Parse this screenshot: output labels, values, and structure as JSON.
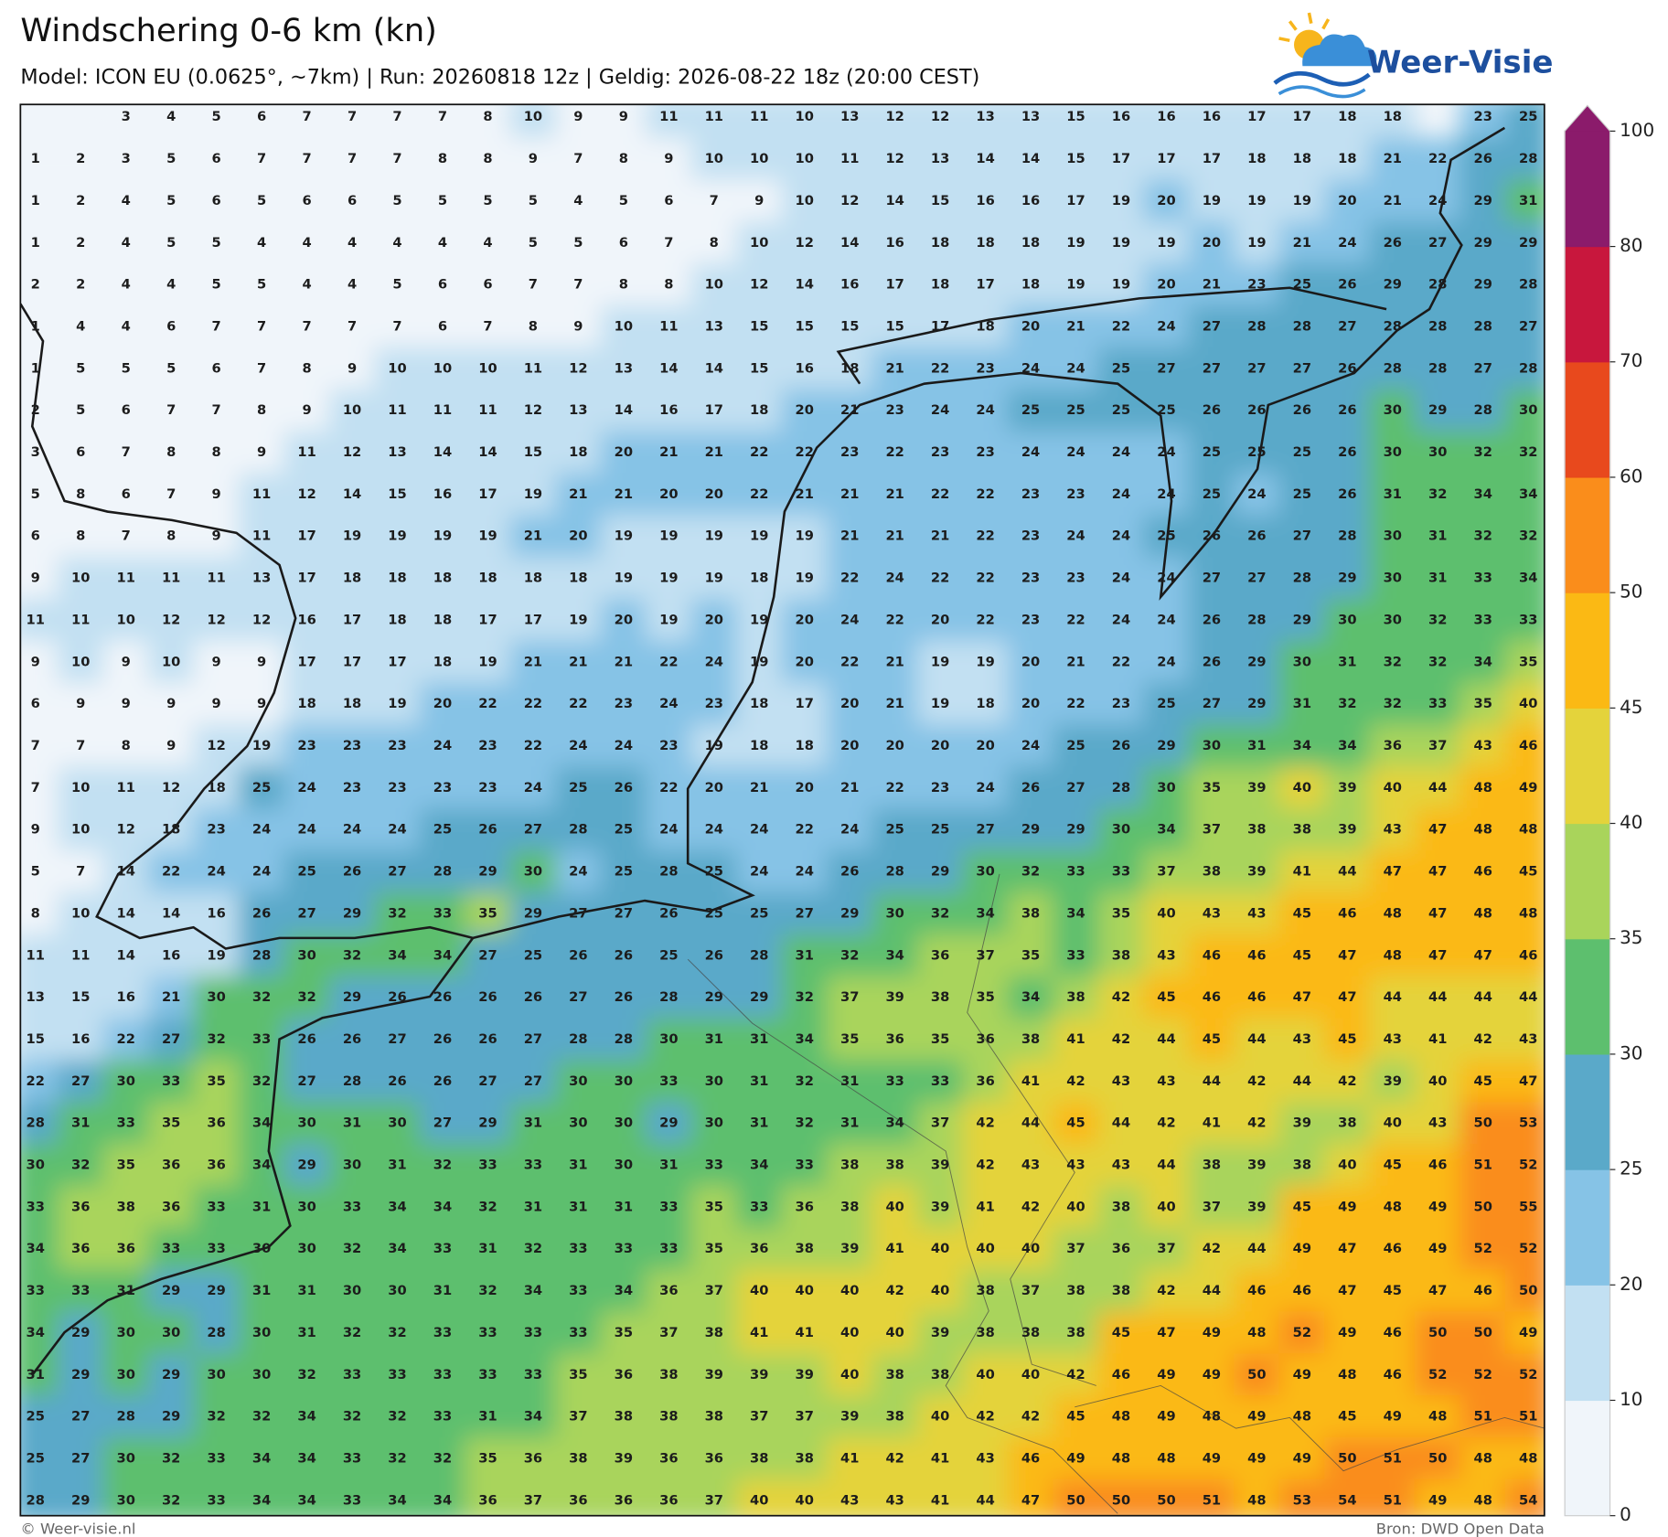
{
  "header": {
    "title": "Windschering 0-6 km (kn)",
    "subtitle": "Model: ICON EU (0.0625°, ~7km)  |  Run: 20260818 12z  |  Geldig: 2026-08-22 18z (20:00 CEST)",
    "logo": "Weer-Visie"
  },
  "footer": {
    "left": "© Weer-visie.nl",
    "right": "Bron: DWD Open Data"
  },
  "map": {
    "colorbar": {
      "levels": [
        0,
        10,
        20,
        25,
        30,
        35,
        40,
        45,
        50,
        60,
        70,
        80,
        100
      ],
      "colors": [
        "#f0f5fa",
        "#c2e0f2",
        "#86c3e6",
        "#5aa9c9",
        "#5dbf6e",
        "#a9d45b",
        "#e4d33b",
        "#fbb914",
        "#fa8d1b",
        "#e8491d",
        "#c8173d",
        "#8b1b6b"
      ]
    },
    "grid": [
      [
        null,
        null,
        3,
        4,
        5,
        6,
        7,
        7,
        7,
        7,
        8,
        10,
        9,
        9,
        11,
        11,
        11,
        10,
        13,
        12,
        12,
        13,
        13,
        15,
        16,
        16,
        16,
        17,
        17,
        18,
        18,
        null,
        23,
        25
      ],
      [
        1,
        2,
        3,
        5,
        6,
        7,
        7,
        7,
        7,
        8,
        8,
        9,
        7,
        8,
        9,
        10,
        10,
        10,
        11,
        12,
        13,
        14,
        14,
        15,
        17,
        17,
        17,
        18,
        18,
        18,
        21,
        22,
        26,
        28
      ],
      [
        1,
        2,
        4,
        5,
        6,
        5,
        6,
        6,
        5,
        5,
        5,
        5,
        4,
        5,
        6,
        7,
        9,
        10,
        12,
        14,
        15,
        16,
        16,
        17,
        19,
        20,
        19,
        19,
        19,
        20,
        21,
        24,
        29,
        31
      ],
      [
        1,
        2,
        4,
        5,
        5,
        4,
        4,
        4,
        4,
        4,
        4,
        5,
        5,
        6,
        7,
        8,
        10,
        12,
        14,
        16,
        18,
        18,
        18,
        19,
        19,
        19,
        20,
        19,
        21,
        24,
        26,
        27,
        29,
        29
      ],
      [
        2,
        2,
        4,
        4,
        5,
        5,
        4,
        4,
        5,
        6,
        6,
        7,
        7,
        8,
        8,
        10,
        12,
        14,
        16,
        17,
        18,
        17,
        18,
        19,
        19,
        20,
        21,
        23,
        25,
        26,
        29,
        28,
        29,
        28
      ],
      [
        1,
        4,
        4,
        6,
        7,
        7,
        7,
        7,
        7,
        6,
        7,
        8,
        9,
        10,
        11,
        13,
        15,
        15,
        15,
        15,
        17,
        18,
        20,
        21,
        22,
        24,
        27,
        28,
        28,
        27,
        28,
        28,
        28,
        27
      ],
      [
        1,
        5,
        5,
        5,
        6,
        7,
        8,
        9,
        10,
        10,
        10,
        11,
        12,
        13,
        14,
        14,
        15,
        16,
        18,
        21,
        22,
        23,
        24,
        24,
        25,
        27,
        27,
        27,
        27,
        26,
        28,
        28,
        27,
        28
      ],
      [
        2,
        5,
        6,
        7,
        7,
        8,
        9,
        10,
        11,
        11,
        11,
        12,
        13,
        14,
        16,
        17,
        18,
        20,
        21,
        23,
        24,
        24,
        25,
        25,
        25,
        25,
        26,
        26,
        26,
        26,
        30,
        29,
        28,
        30
      ],
      [
        3,
        6,
        7,
        8,
        8,
        9,
        11,
        12,
        13,
        14,
        14,
        15,
        18,
        20,
        21,
        21,
        22,
        22,
        23,
        22,
        23,
        23,
        24,
        24,
        24,
        24,
        25,
        25,
        25,
        26,
        30,
        30,
        32,
        32
      ],
      [
        5,
        8,
        6,
        7,
        9,
        11,
        12,
        14,
        15,
        16,
        17,
        19,
        21,
        21,
        20,
        20,
        22,
        21,
        21,
        21,
        22,
        22,
        23,
        23,
        24,
        24,
        25,
        24,
        25,
        26,
        31,
        32,
        34,
        34
      ],
      [
        6,
        8,
        7,
        8,
        9,
        11,
        17,
        19,
        19,
        19,
        19,
        21,
        20,
        19,
        19,
        19,
        19,
        19,
        21,
        21,
        21,
        22,
        23,
        24,
        24,
        25,
        26,
        26,
        27,
        28,
        30,
        31,
        32,
        32
      ],
      [
        9,
        10,
        11,
        11,
        11,
        13,
        17,
        18,
        18,
        18,
        18,
        18,
        18,
        19,
        19,
        19,
        18,
        19,
        22,
        24,
        22,
        22,
        23,
        23,
        24,
        24,
        27,
        27,
        28,
        29,
        30,
        31,
        33,
        34
      ],
      [
        11,
        11,
        10,
        12,
        12,
        12,
        16,
        17,
        18,
        18,
        17,
        17,
        19,
        20,
        19,
        20,
        19,
        20,
        24,
        22,
        20,
        22,
        23,
        22,
        24,
        24,
        26,
        28,
        29,
        30,
        30,
        32,
        33,
        33
      ],
      [
        9,
        10,
        9,
        10,
        9,
        9,
        17,
        17,
        17,
        18,
        19,
        21,
        21,
        21,
        22,
        24,
        19,
        20,
        22,
        21,
        19,
        19,
        20,
        21,
        22,
        24,
        26,
        29,
        30,
        31,
        32,
        32,
        34,
        35
      ],
      [
        6,
        9,
        9,
        9,
        9,
        9,
        18,
        18,
        19,
        20,
        22,
        22,
        22,
        23,
        24,
        23,
        18,
        17,
        20,
        21,
        19,
        18,
        20,
        22,
        23,
        25,
        27,
        29,
        31,
        32,
        32,
        33,
        35,
        40
      ],
      [
        7,
        7,
        8,
        9,
        12,
        19,
        23,
        23,
        23,
        24,
        23,
        22,
        24,
        24,
        23,
        19,
        18,
        18,
        20,
        20,
        20,
        20,
        24,
        25,
        26,
        29,
        30,
        31,
        34,
        34,
        36,
        37,
        43,
        46
      ],
      [
        7,
        10,
        11,
        12,
        18,
        25,
        24,
        23,
        23,
        23,
        23,
        24,
        25,
        26,
        22,
        20,
        21,
        20,
        21,
        22,
        23,
        24,
        26,
        27,
        28,
        30,
        35,
        39,
        40,
        39,
        40,
        44,
        48,
        49
      ],
      [
        9,
        10,
        12,
        18,
        23,
        24,
        24,
        24,
        24,
        25,
        26,
        27,
        28,
        25,
        24,
        24,
        24,
        22,
        24,
        25,
        25,
        27,
        29,
        29,
        30,
        34,
        37,
        38,
        38,
        39,
        43,
        47,
        48,
        48
      ],
      [
        5,
        7,
        14,
        22,
        24,
        24,
        25,
        26,
        27,
        28,
        29,
        30,
        24,
        25,
        28,
        25,
        24,
        24,
        26,
        28,
        29,
        30,
        32,
        33,
        33,
        37,
        38,
        39,
        41,
        44,
        47,
        47,
        46,
        45
      ],
      [
        8,
        10,
        14,
        14,
        16,
        26,
        27,
        29,
        32,
        33,
        35,
        29,
        27,
        27,
        26,
        25,
        25,
        27,
        29,
        30,
        32,
        34,
        38,
        34,
        35,
        40,
        43,
        43,
        45,
        46,
        48,
        47,
        48,
        48
      ],
      [
        11,
        11,
        14,
        16,
        19,
        28,
        30,
        32,
        34,
        34,
        27,
        25,
        26,
        26,
        25,
        26,
        28,
        31,
        32,
        34,
        36,
        37,
        35,
        33,
        38,
        43,
        46,
        46,
        45,
        47,
        48,
        47,
        47,
        46
      ],
      [
        13,
        15,
        16,
        21,
        30,
        32,
        32,
        29,
        26,
        26,
        26,
        26,
        27,
        26,
        28,
        29,
        29,
        32,
        37,
        39,
        38,
        35,
        34,
        38,
        42,
        45,
        46,
        46,
        47,
        47,
        44,
        44,
        44,
        44
      ],
      [
        15,
        16,
        22,
        27,
        32,
        33,
        26,
        26,
        27,
        26,
        26,
        27,
        28,
        28,
        30,
        31,
        31,
        34,
        35,
        36,
        35,
        36,
        38,
        41,
        42,
        44,
        45,
        44,
        43,
        45,
        43,
        41,
        42,
        43
      ],
      [
        22,
        27,
        30,
        33,
        35,
        32,
        27,
        28,
        26,
        26,
        27,
        27,
        30,
        30,
        33,
        30,
        31,
        32,
        31,
        33,
        33,
        36,
        41,
        42,
        43,
        43,
        44,
        42,
        44,
        42,
        39,
        40,
        45,
        47
      ],
      [
        28,
        31,
        33,
        35,
        36,
        34,
        30,
        31,
        30,
        27,
        29,
        31,
        30,
        30,
        29,
        30,
        31,
        32,
        31,
        34,
        37,
        42,
        44,
        45,
        44,
        42,
        41,
        42,
        39,
        38,
        40,
        43,
        50,
        53
      ],
      [
        30,
        32,
        35,
        36,
        36,
        34,
        29,
        30,
        31,
        32,
        33,
        33,
        31,
        30,
        31,
        33,
        34,
        33,
        38,
        38,
        39,
        42,
        43,
        43,
        43,
        44,
        38,
        39,
        38,
        40,
        45,
        46,
        51,
        52
      ],
      [
        33,
        36,
        38,
        36,
        33,
        31,
        30,
        33,
        34,
        34,
        32,
        31,
        31,
        31,
        33,
        35,
        33,
        36,
        38,
        40,
        39,
        41,
        42,
        40,
        38,
        40,
        37,
        39,
        45,
        49,
        48,
        49,
        50,
        55
      ],
      [
        34,
        36,
        36,
        33,
        33,
        30,
        30,
        32,
        34,
        33,
        31,
        32,
        33,
        33,
        33,
        35,
        36,
        38,
        39,
        41,
        40,
        40,
        40,
        37,
        36,
        37,
        42,
        44,
        49,
        47,
        46,
        49,
        52,
        52
      ],
      [
        33,
        33,
        31,
        29,
        29,
        31,
        31,
        30,
        30,
        31,
        32,
        34,
        33,
        34,
        36,
        37,
        40,
        40,
        40,
        42,
        40,
        38,
        37,
        38,
        38,
        42,
        44,
        46,
        46,
        47,
        45,
        47,
        46,
        50
      ],
      [
        34,
        29,
        30,
        30,
        28,
        30,
        31,
        32,
        32,
        33,
        33,
        33,
        33,
        35,
        37,
        38,
        41,
        41,
        40,
        40,
        39,
        38,
        38,
        38,
        45,
        47,
        49,
        48,
        52,
        49,
        46,
        50,
        50,
        49
      ],
      [
        31,
        29,
        30,
        29,
        30,
        30,
        32,
        33,
        33,
        33,
        33,
        33,
        35,
        36,
        38,
        39,
        39,
        39,
        40,
        38,
        38,
        40,
        40,
        42,
        46,
        49,
        49,
        50,
        49,
        48,
        46,
        52,
        52,
        52
      ],
      [
        25,
        27,
        28,
        29,
        32,
        32,
        34,
        32,
        32,
        33,
        31,
        34,
        37,
        38,
        38,
        38,
        37,
        37,
        39,
        38,
        40,
        42,
        42,
        45,
        48,
        49,
        48,
        49,
        48,
        45,
        49,
        48,
        51,
        51
      ],
      [
        25,
        27,
        30,
        32,
        33,
        34,
        34,
        33,
        32,
        32,
        35,
        36,
        38,
        39,
        36,
        36,
        38,
        38,
        41,
        42,
        41,
        43,
        46,
        49,
        48,
        48,
        49,
        49,
        49,
        50,
        51,
        50,
        48,
        48
      ],
      [
        28,
        29,
        30,
        32,
        33,
        34,
        34,
        33,
        34,
        34,
        36,
        37,
        36,
        36,
        36,
        37,
        40,
        40,
        43,
        43,
        41,
        44,
        47,
        50,
        50,
        50,
        51,
        48,
        53,
        54,
        51,
        49,
        48,
        54
      ]
    ]
  }
}
